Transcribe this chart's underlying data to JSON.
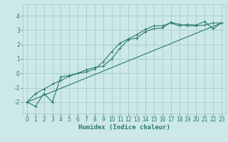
{
  "bg_color": "#cce8e8",
  "line_color": "#2a7a6a",
  "grid_color": "#aacccc",
  "xlabel": "Humidex (Indice chaleur)",
  "xlabel_fontsize": 6.5,
  "tick_fontsize": 5.5,
  "xlim": [
    -0.5,
    23.5
  ],
  "ylim": [
    -2.8,
    4.8
  ],
  "yticks": [
    -2,
    -1,
    0,
    1,
    2,
    3,
    4
  ],
  "xticks": [
    0,
    1,
    2,
    3,
    4,
    5,
    6,
    7,
    8,
    9,
    10,
    11,
    12,
    13,
    14,
    15,
    16,
    17,
    18,
    19,
    20,
    21,
    22,
    23
  ],
  "line1_x": [
    0,
    1,
    2,
    3,
    4,
    5,
    6,
    7,
    8,
    9,
    10,
    11,
    12,
    13,
    14,
    15,
    16,
    17,
    18,
    19,
    20,
    21,
    22,
    23
  ],
  "line1_y": [
    -2.0,
    -2.3,
    -1.4,
    -2.0,
    -0.25,
    -0.15,
    0.0,
    0.25,
    0.4,
    0.5,
    1.0,
    1.75,
    2.35,
    2.45,
    2.9,
    3.1,
    3.15,
    3.55,
    3.4,
    3.3,
    3.3,
    3.35,
    3.5,
    3.5
  ],
  "line2_x": [
    0,
    1,
    2,
    3,
    4,
    5,
    6,
    7,
    8,
    9,
    10,
    11,
    12,
    13,
    14,
    15,
    16,
    17,
    18,
    19,
    20,
    21,
    22,
    23
  ],
  "line2_y": [
    -2.0,
    -1.4,
    -1.1,
    -0.75,
    -0.5,
    -0.2,
    0.0,
    0.1,
    0.3,
    0.8,
    1.5,
    2.1,
    2.4,
    2.7,
    3.05,
    3.3,
    3.3,
    3.5,
    3.3,
    3.4,
    3.35,
    3.6,
    3.1,
    3.5
  ],
  "line3_x": [
    0,
    23
  ],
  "line3_y": [
    -2.0,
    3.5
  ]
}
